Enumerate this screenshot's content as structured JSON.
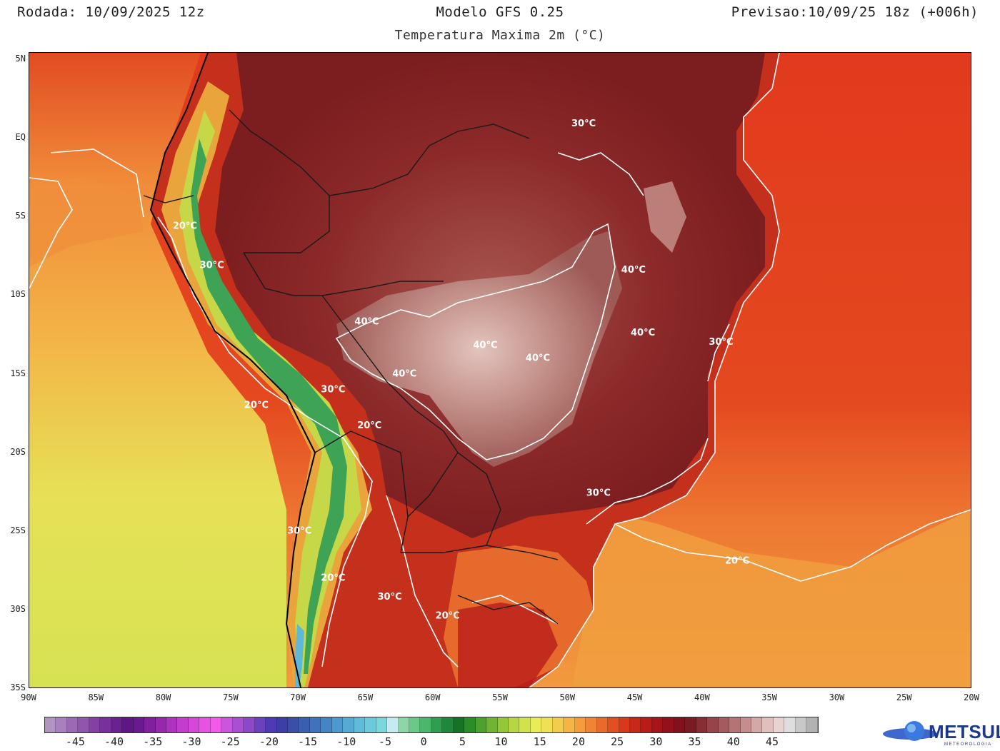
{
  "header": {
    "run_label": "Rodada: 10/09/2025 12z",
    "model_label": "Modelo GFS 0.25",
    "forecast_label": "Previsao:10/09/25 18z (+006h)",
    "subtitle": "Temperatura Maxima 2m (°C)"
  },
  "axes": {
    "lat_ticks": [
      "5N",
      "EQ",
      "5S",
      "10S",
      "15S",
      "20S",
      "25S",
      "30S",
      "35S"
    ],
    "lon_ticks": [
      "90W",
      "85W",
      "80W",
      "75W",
      "70W",
      "65W",
      "60W",
      "55W",
      "50W",
      "45W",
      "40W",
      "35W",
      "30W",
      "25W",
      "20W"
    ],
    "lat_range": [
      -35,
      5
    ],
    "lon_range": [
      -90,
      -20
    ]
  },
  "contour_labels": [
    {
      "text": "30°C",
      "lon": -48.9,
      "lat": 1.0
    },
    {
      "text": "20°C",
      "lon": -78.5,
      "lat": -5.5
    },
    {
      "text": "30°C",
      "lon": -76.5,
      "lat": -8.0
    },
    {
      "text": "40°C",
      "lon": -45.2,
      "lat": -8.3
    },
    {
      "text": "40°C",
      "lon": -65.0,
      "lat": -11.6
    },
    {
      "text": "40°C",
      "lon": -44.5,
      "lat": -12.3
    },
    {
      "text": "40°C",
      "lon": -56.2,
      "lat": -13.1
    },
    {
      "text": "30°C",
      "lon": -38.7,
      "lat": -12.9
    },
    {
      "text": "40°C",
      "lon": -52.3,
      "lat": -13.9
    },
    {
      "text": "40°C",
      "lon": -62.2,
      "lat": -14.9
    },
    {
      "text": "30°C",
      "lon": -67.5,
      "lat": -15.9
    },
    {
      "text": "20°C",
      "lon": -73.2,
      "lat": -16.9
    },
    {
      "text": "20°C",
      "lon": -64.8,
      "lat": -18.2
    },
    {
      "text": "30°C",
      "lon": -47.8,
      "lat": -22.5
    },
    {
      "text": "20°C",
      "lon": -37.5,
      "lat": -26.8
    },
    {
      "text": "30°C",
      "lon": -70.0,
      "lat": -24.9
    },
    {
      "text": "20°C",
      "lon": -67.5,
      "lat": -27.9
    },
    {
      "text": "30°C",
      "lon": -63.3,
      "lat": -29.1
    },
    {
      "text": "20°C",
      "lon": -59.0,
      "lat": -30.3
    }
  ],
  "colorbar": {
    "labels": [
      "-45",
      "-40",
      "-35",
      "-30",
      "-25",
      "-20",
      "-15",
      "-10",
      "-5",
      "0",
      "5",
      "10",
      "15",
      "20",
      "25",
      "30",
      "35",
      "40",
      "45"
    ],
    "min": -50,
    "max": 50,
    "step": 2.5,
    "colors": [
      "#b294c2",
      "#a880bd",
      "#9c6ab5",
      "#9155ad",
      "#8440a5",
      "#77309c",
      "#6a2290",
      "#5e1784",
      "#681a8f",
      "#80209f",
      "#9628ae",
      "#ad32bd",
      "#c23dcc",
      "#d648d8",
      "#e752e2",
      "#f05ce8",
      "#cc55dd",
      "#a84fd2",
      "#8a4ac8",
      "#6a42be",
      "#4e3ab2",
      "#3d3ea8",
      "#3b4ea8",
      "#3b5fb0",
      "#3f72ba",
      "#4585c4",
      "#4d98cd",
      "#56aad4",
      "#60bbd9",
      "#6ccadb",
      "#7dd6d9",
      "#c6eaf2",
      "#8fd6a6",
      "#6cc889",
      "#4db66d",
      "#2f9e4e",
      "#1f8838",
      "#157227",
      "#2b8c2a",
      "#4da12e",
      "#71b433",
      "#95c63a",
      "#b6d643",
      "#d1e34c",
      "#e9ec56",
      "#efe055",
      "#f3cb4d",
      "#f4b545",
      "#f39d3d",
      "#ef8434",
      "#ea6a2b",
      "#e24f23",
      "#d6391d",
      "#c8281a",
      "#b71c18",
      "#a51518",
      "#94111b",
      "#82101d",
      "#7a1a22",
      "#872e34",
      "#95444a",
      "#a45b5f",
      "#b47476",
      "#c48e8e",
      "#d3a8a6",
      "#e0bfbc",
      "#e9d3d0",
      "#dedede",
      "#c8c8c8",
      "#b2b2b2"
    ]
  },
  "logo": {
    "name": "METSUL",
    "tagline": "METEOROLOGIA"
  }
}
